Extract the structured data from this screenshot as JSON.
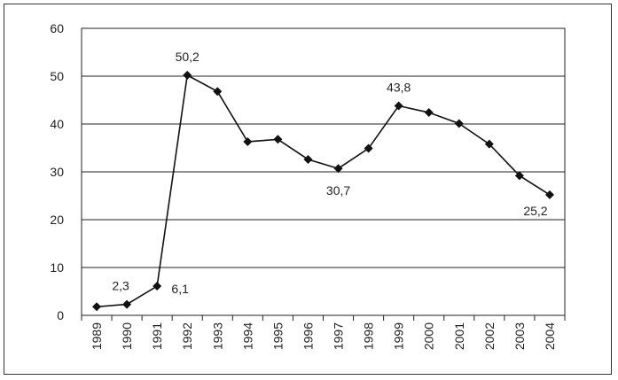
{
  "chart_data": {
    "type": "line",
    "x": [
      "1989",
      "1990",
      "1991",
      "1992",
      "1993",
      "1994",
      "1995",
      "1996",
      "1997",
      "1998",
      "1999",
      "2000",
      "2001",
      "2002",
      "2003",
      "2004"
    ],
    "series": [
      {
        "values": [
          1.8,
          2.3,
          6.1,
          50.2,
          46.8,
          36.3,
          36.8,
          32.6,
          30.7,
          34.9,
          43.8,
          42.4,
          40.1,
          35.8,
          29.2,
          25.2
        ]
      }
    ],
    "data_labels": [
      {
        "index": 1,
        "text": "2,3"
      },
      {
        "index": 2,
        "text": "6,1"
      },
      {
        "index": 3,
        "text": "50,2"
      },
      {
        "index": 8,
        "text": "30,7"
      },
      {
        "index": 10,
        "text": "43,8"
      },
      {
        "index": 15,
        "text": "25,2"
      }
    ],
    "title": "",
    "xlabel": "",
    "ylabel": "",
    "ylim": [
      0,
      60
    ],
    "yticks": [
      "0",
      "10",
      "20",
      "30",
      "40",
      "50",
      "60"
    ],
    "grid": "horizontal",
    "legend": "none",
    "colors": {
      "line": "#111111",
      "grid": "#222222",
      "marker": "#111111"
    }
  }
}
